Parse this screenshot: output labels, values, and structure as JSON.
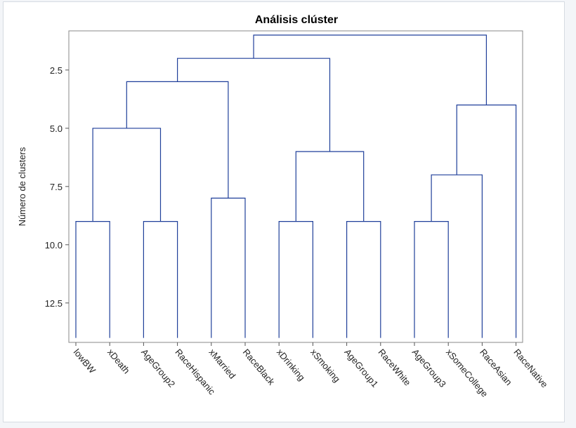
{
  "chart_data": {
    "type": "dendrogram",
    "title": "Análisis clúster",
    "ylabel": "Número de clusters",
    "ylim": [
      1,
      14.2
    ],
    "yticks": [
      2.5,
      5.0,
      7.5,
      10.0,
      12.5
    ],
    "ytick_labels": [
      "2.5",
      "5.0",
      "7.5",
      "10.0",
      "12.5"
    ],
    "leaf_axis_value": 14.0,
    "leaves": [
      "lowBW",
      "xDeath",
      "AgeGroup2",
      "RaceHispanic",
      "xMarried",
      "RaceBlack",
      "xDrinking",
      "xSmoking",
      "AgeGroup1",
      "RaceWhite",
      "AgeGroup3",
      "xSomeCollege",
      "RaceAsian",
      "RaceNative"
    ],
    "merges": [
      {
        "id": "m1",
        "left": "leaf:0",
        "right": "leaf:1",
        "height": 9.0
      },
      {
        "id": "m2",
        "left": "leaf:2",
        "right": "leaf:3",
        "height": 9.0
      },
      {
        "id": "m3",
        "left": "leaf:4",
        "right": "leaf:5",
        "height": 8.0
      },
      {
        "id": "m4",
        "left": "leaf:6",
        "right": "leaf:7",
        "height": 9.0
      },
      {
        "id": "m5",
        "left": "leaf:8",
        "right": "leaf:9",
        "height": 9.0
      },
      {
        "id": "m6",
        "left": "leaf:10",
        "right": "leaf:11",
        "height": 9.0
      },
      {
        "id": "m7",
        "left": "m1",
        "right": "m2",
        "height": 5.0
      },
      {
        "id": "m8",
        "left": "m4",
        "right": "m5",
        "height": 6.0
      },
      {
        "id": "m9",
        "left": "m6",
        "right": "leaf:12",
        "height": 7.0
      },
      {
        "id": "m10",
        "left": "m7",
        "right": "m3",
        "height": 3.0
      },
      {
        "id": "m11",
        "left": "m9",
        "right": "leaf:13",
        "height": 4.0
      },
      {
        "id": "m12",
        "left": "m10",
        "right": "m8",
        "height": 2.0
      },
      {
        "id": "m13",
        "left": "m12",
        "right": "m11",
        "height": 1.0
      }
    ],
    "grid": false,
    "line_color": "#1f3f9a"
  }
}
